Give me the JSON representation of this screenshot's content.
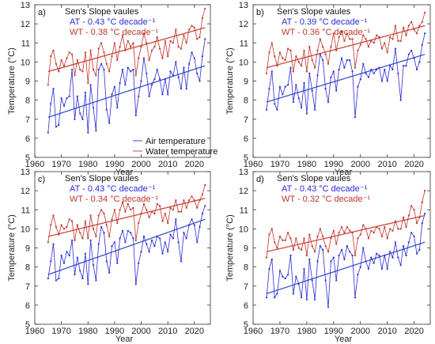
{
  "colors": {
    "air": "#2b2bd6",
    "water": "#c0352b",
    "trend_air": "#3a55c8",
    "trend_water": "#d0483a",
    "title": "#111111"
  },
  "labels": {
    "xlabel": "Year",
    "ylabel": "Temperature (°C)",
    "legend_air": "Air temperature",
    "legend_water": "Water temperature"
  },
  "chart_data": [
    {
      "type": "line",
      "panel_label": "a)",
      "title": "Sen's Slope vaules",
      "at_slope": "AT - 0.43 °C decade⁻¹",
      "wt_slope": "WT - 0.38 °C decade⁻¹",
      "xlim": [
        1960,
        2026
      ],
      "ylim": [
        5,
        13
      ],
      "xticks": [
        1960,
        1970,
        1980,
        1990,
        2000,
        2010,
        2020
      ],
      "yticks": [
        5,
        6,
        7,
        8,
        9,
        10,
        11,
        12,
        13
      ],
      "legend": "lower-right",
      "trend_air": [
        [
          1965,
          7.1
        ],
        [
          2024,
          9.8
        ]
      ],
      "trend_water": [
        [
          1965,
          9.5
        ],
        [
          2024,
          11.8
        ]
      ],
      "x_start": 1965,
      "series": [
        {
          "name": "Air temperature",
          "values": [
            6.3,
            7.8,
            8.6,
            6.6,
            6.7,
            8.1,
            7.7,
            8.1,
            8.2,
            9.6,
            7.0,
            8.2,
            7.3,
            7.0,
            8.4,
            6.3,
            8.8,
            7.6,
            6.4,
            9.6,
            9.9,
            9.6,
            7.5,
            6.8,
            8.3,
            8.7,
            7.6,
            8.9,
            9.6,
            8.8,
            9.7,
            9.5,
            9.6,
            7.2,
            8.2,
            9.0,
            10.2,
            9.4,
            8.2,
            8.8,
            9.1,
            9.6,
            9.1,
            8.3,
            9.1,
            8.3,
            9.5,
            9.3,
            10.0,
            9.2,
            8.6,
            9.7,
            8.6,
            9.9,
            10.5,
            10.2,
            9.4,
            9.0,
            10.3,
            11.2
          ]
        },
        {
          "name": "Water temperature",
          "values": [
            8.8,
            10.3,
            10.6,
            9.9,
            9.5,
            10.1,
            9.8,
            10.2,
            10.5,
            10.4,
            9.3,
            10.1,
            9.6,
            9.5,
            10.5,
            8.9,
            10.6,
            9.6,
            9.3,
            10.7,
            11.0,
            10.5,
            9.9,
            9.5,
            10.3,
            11.0,
            10.1,
            10.8,
            11.4,
            10.6,
            11.1,
            10.8,
            11.0,
            9.3,
            10.2,
            10.8,
            11.5,
            11.0,
            10.1,
            10.6,
            10.8,
            11.3,
            10.7,
            10.2,
            11.1,
            10.3,
            11.1,
            11.0,
            11.7,
            10.8,
            10.7,
            11.4,
            11.0,
            11.7,
            11.9,
            11.8,
            11.2,
            11.3,
            12.3,
            12.8
          ]
        }
      ]
    },
    {
      "type": "line",
      "panel_label": "b)",
      "title": "Sen's Slope vaules",
      "at_slope": "AT - 0.39 °C decade⁻¹",
      "wt_slope": "WT - 0.36 °C decade⁻¹",
      "xlim": [
        1960,
        2026
      ],
      "ylim": [
        5,
        13
      ],
      "xticks": [
        1960,
        1970,
        1980,
        1990,
        2000,
        2010,
        2020
      ],
      "yticks": [
        5,
        6,
        7,
        8,
        9,
        10,
        11,
        12,
        13
      ],
      "trend_air": [
        [
          1965,
          7.9
        ],
        [
          2024,
          10.4
        ]
      ],
      "trend_water": [
        [
          1965,
          9.7
        ],
        [
          2024,
          11.9
        ]
      ],
      "x_start": 1965,
      "series": [
        {
          "name": "Air temperature",
          "values": [
            7.5,
            8.6,
            9.5,
            7.8,
            7.5,
            8.7,
            8.3,
            8.7,
            8.8,
            9.7,
            7.9,
            8.8,
            8.1,
            7.6,
            8.9,
            7.3,
            9.4,
            8.5,
            7.5,
            9.3,
            10.4,
            10.1,
            8.6,
            7.9,
            9.2,
            9.5,
            8.5,
            9.6,
            10.2,
            9.7,
            10.1,
            10.1,
            9.5,
            7.1,
            8.7,
            9.1,
            9.9,
            9.4,
            9.2,
            9.6,
            9.4,
            9.6,
            9.7,
            9.0,
            9.6,
            9.0,
            9.8,
            9.6,
            10.7,
            9.4,
            8.0,
            9.8,
            9.8,
            10.4,
            10.6,
            10.2,
            9.6,
            10.0,
            10.9,
            11.5
          ]
        },
        {
          "name": "Water temperature",
          "values": [
            9.4,
            10.5,
            11.0,
            10.3,
            9.8,
            10.5,
            10.2,
            10.1,
            10.7,
            10.6,
            9.5,
            10.3,
            10.0,
            9.8,
            10.6,
            9.5,
            10.8,
            10.1,
            9.7,
            10.6,
            11.2,
            10.8,
            10.4,
            9.9,
            10.8,
            11.5,
            10.6,
            11.3,
            11.6,
            11.1,
            11.5,
            11.2,
            11.2,
            9.7,
            10.6,
            10.9,
            11.4,
            11.2,
            10.8,
            11.1,
            11.0,
            11.4,
            11.3,
            10.7,
            11.0,
            10.5,
            11.3,
            11.2,
            11.9,
            11.1,
            11.1,
            11.8,
            11.4,
            11.9,
            12.1,
            11.7,
            11.5,
            11.9,
            12.1,
            12.6
          ]
        }
      ]
    },
    {
      "type": "line",
      "panel_label": "c)",
      "title": "Sen's Slope vaules",
      "at_slope": "AT - 0.43 °C decade⁻¹",
      "wt_slope": "WT - 0.34 °C decade⁻¹",
      "xlim": [
        1960,
        2026
      ],
      "ylim": [
        5,
        13
      ],
      "xticks": [
        1960,
        1970,
        1980,
        1990,
        2000,
        2010,
        2020
      ],
      "yticks": [
        5,
        6,
        7,
        8,
        9,
        10,
        11,
        12,
        13
      ],
      "trend_air": [
        [
          1965,
          7.6
        ],
        [
          2024,
          10.5
        ]
      ],
      "trend_water": [
        [
          1965,
          9.6
        ],
        [
          2024,
          11.6
        ]
      ],
      "x_start": 1965,
      "series": [
        {
          "name": "Air temperature",
          "values": [
            7.4,
            8.3,
            9.2,
            7.3,
            7.4,
            8.6,
            8.2,
            8.8,
            8.6,
            9.4,
            7.6,
            8.5,
            7.8,
            7.4,
            8.7,
            7.1,
            9.4,
            8.1,
            7.3,
            9.2,
            10.1,
            9.8,
            8.3,
            7.7,
            9.1,
            9.3,
            8.2,
            9.5,
            9.9,
            9.3,
            9.9,
            9.8,
            9.5,
            7.1,
            8.2,
            8.8,
            9.6,
            9.2,
            8.8,
            9.4,
            9.1,
            9.6,
            9.5,
            8.7,
            9.3,
            8.8,
            9.7,
            9.5,
            10.5,
            9.3,
            8.3,
            9.8,
            9.5,
            10.2,
            10.5,
            10.2,
            9.3,
            10.1,
            10.8,
            11.2
          ]
        },
        {
          "name": "Water temperature",
          "values": [
            9.3,
            10.2,
            10.7,
            10.1,
            9.7,
            10.2,
            10.0,
            10.1,
            10.5,
            10.4,
            9.4,
            10.2,
            9.8,
            9.5,
            10.4,
            9.5,
            10.7,
            10.0,
            9.6,
            10.7,
            11.0,
            10.8,
            10.2,
            9.6,
            10.5,
            11.0,
            10.3,
            11.0,
            11.4,
            10.9,
            11.3,
            11.0,
            11.1,
            9.4,
            10.3,
            10.8,
            11.3,
            11.0,
            10.6,
            10.9,
            10.8,
            11.3,
            11.2,
            10.4,
            10.8,
            10.3,
            11.1,
            11.0,
            11.5,
            10.9,
            10.9,
            11.5,
            11.1,
            11.5,
            11.7,
            11.5,
            11.1,
            11.5,
            11.8,
            12.3
          ]
        }
      ]
    },
    {
      "type": "line",
      "panel_label": "d)",
      "title": "Sen's Slope vaules",
      "at_slope": "AT - 0.43 °C decade⁻¹",
      "wt_slope": "WT - 0.32 °C decade⁻¹",
      "xlim": [
        1960,
        2026
      ],
      "ylim": [
        5,
        13
      ],
      "xticks": [
        1960,
        1970,
        1980,
        1990,
        2000,
        2010,
        2020
      ],
      "yticks": [
        5,
        6,
        7,
        8,
        9,
        10,
        11,
        12,
        13
      ],
      "trend_air": [
        [
          1965,
          6.6
        ],
        [
          2024,
          9.3
        ]
      ],
      "trend_water": [
        [
          1965,
          8.8
        ],
        [
          2024,
          10.7
        ]
      ],
      "x_start": 1965,
      "series": [
        {
          "name": "Air temperature",
          "values": [
            6.4,
            7.9,
            8.4,
            6.4,
            6.6,
            7.8,
            7.5,
            7.4,
            7.6,
            8.6,
            6.6,
            7.5,
            7.1,
            6.4,
            7.9,
            6.3,
            8.4,
            7.3,
            6.3,
            8.3,
            9.1,
            8.9,
            7.3,
            5.9,
            8.3,
            8.5,
            7.3,
            8.6,
            8.9,
            8.4,
            9.1,
            8.8,
            8.6,
            6.4,
            7.6,
            8.0,
            9.0,
            8.3,
            7.9,
            8.5,
            8.2,
            8.7,
            8.6,
            7.9,
            8.6,
            7.9,
            8.8,
            8.5,
            9.3,
            8.5,
            8.1,
            9.1,
            8.6,
            9.3,
            9.8,
            9.6,
            8.7,
            8.9,
            10.3,
            10.8
          ]
        },
        {
          "name": "Water temperature",
          "values": [
            8.5,
            9.7,
            10.0,
            9.3,
            9.0,
            9.6,
            9.4,
            9.4,
            9.8,
            9.5,
            8.9,
            9.5,
            9.0,
            8.9,
            9.5,
            8.6,
            9.7,
            9.1,
            8.8,
            9.6,
            10.0,
            9.6,
            9.1,
            8.8,
            9.5,
            9.9,
            9.2,
            9.8,
            10.1,
            9.8,
            10.1,
            9.9,
            9.8,
            8.6,
            9.5,
            9.7,
            10.2,
            10.0,
            9.5,
            9.9,
            9.8,
            10.1,
            10.0,
            9.6,
            10.1,
            9.5,
            10.0,
            9.9,
            10.4,
            10.0,
            10.0,
            10.6,
            10.1,
            10.7,
            11.2,
            11.0,
            10.3,
            10.6,
            11.4,
            12.0
          ]
        }
      ]
    }
  ]
}
